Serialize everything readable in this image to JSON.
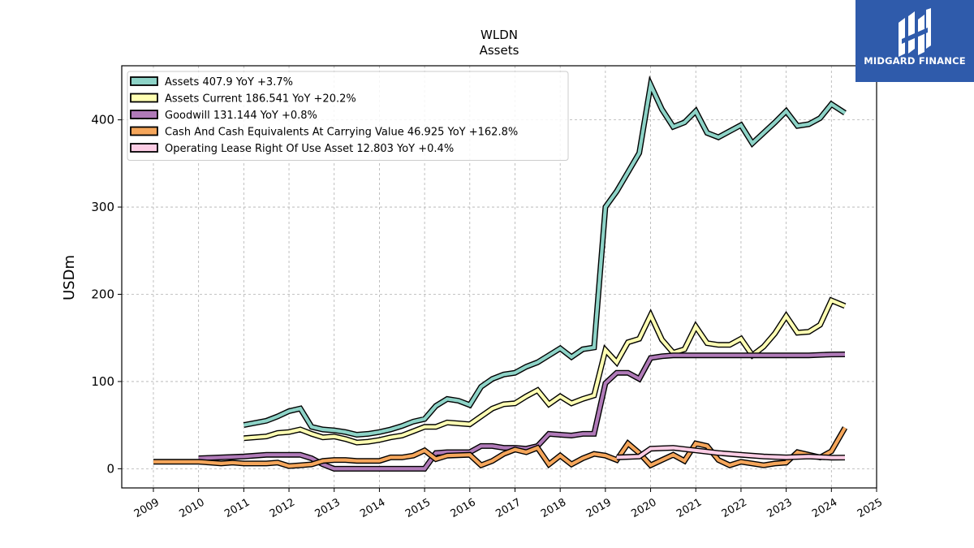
{
  "brand": {
    "name": "MIDGARD FINANCE",
    "color": "#2f5bab"
  },
  "chart_data": {
    "type": "line",
    "title": "WLDN",
    "subtitle": "Assets",
    "ylabel": "USDm",
    "xlabel": "",
    "xlim": [
      2008.3,
      2025.0
    ],
    "ylim": [
      -22,
      462
    ],
    "yticks": [
      0,
      100,
      200,
      300,
      400
    ],
    "xticks": [
      "2009",
      "2010",
      "2011",
      "2012",
      "2013",
      "2014",
      "2015",
      "2016",
      "2017",
      "2018",
      "2019",
      "2020",
      "2021",
      "2022",
      "2023",
      "2024",
      "2025"
    ],
    "grid": true,
    "legend_position": "top-left",
    "series": [
      {
        "name": "Assets",
        "legend": "Assets  407.9 YoY +3.7%",
        "color": "#8dd3c7",
        "points": [
          [
            2011.0,
            50
          ],
          [
            2011.5,
            55
          ],
          [
            2011.75,
            60
          ],
          [
            2012.0,
            66
          ],
          [
            2012.25,
            69
          ],
          [
            2012.5,
            48
          ],
          [
            2012.75,
            45
          ],
          [
            2013.0,
            44
          ],
          [
            2013.25,
            42
          ],
          [
            2013.5,
            39
          ],
          [
            2013.75,
            40
          ],
          [
            2014.0,
            42
          ],
          [
            2014.25,
            45
          ],
          [
            2014.5,
            49
          ],
          [
            2014.75,
            54
          ],
          [
            2015.0,
            57
          ],
          [
            2015.25,
            72
          ],
          [
            2015.5,
            80
          ],
          [
            2015.75,
            78
          ],
          [
            2016.0,
            73
          ],
          [
            2016.25,
            94
          ],
          [
            2016.5,
            103
          ],
          [
            2016.75,
            108
          ],
          [
            2017.0,
            110
          ],
          [
            2017.25,
            117
          ],
          [
            2017.5,
            122
          ],
          [
            2017.75,
            130
          ],
          [
            2018.0,
            138
          ],
          [
            2018.25,
            128
          ],
          [
            2018.5,
            137
          ],
          [
            2018.75,
            139
          ],
          [
            2019.0,
            300
          ],
          [
            2019.25,
            318
          ],
          [
            2019.5,
            340
          ],
          [
            2019.75,
            362
          ],
          [
            2020.0,
            440
          ],
          [
            2020.25,
            412
          ],
          [
            2020.5,
            392
          ],
          [
            2020.75,
            397
          ],
          [
            2021.0,
            410
          ],
          [
            2021.25,
            385
          ],
          [
            2021.5,
            380
          ],
          [
            2021.75,
            387
          ],
          [
            2022.0,
            394
          ],
          [
            2022.25,
            373
          ],
          [
            2022.5,
            385
          ],
          [
            2022.75,
            397
          ],
          [
            2023.0,
            410
          ],
          [
            2023.25,
            393
          ],
          [
            2023.5,
            395
          ],
          [
            2023.75,
            402
          ],
          [
            2024.0,
            418
          ],
          [
            2024.3,
            407.9
          ]
        ]
      },
      {
        "name": "Assets Current",
        "legend": "Assets Current  186.541 YoY +20.2%",
        "color": "#ffffb3",
        "points": [
          [
            2011.0,
            35
          ],
          [
            2011.5,
            37
          ],
          [
            2011.75,
            41
          ],
          [
            2012.0,
            42
          ],
          [
            2012.25,
            45
          ],
          [
            2012.5,
            40
          ],
          [
            2012.75,
            36
          ],
          [
            2013.0,
            37
          ],
          [
            2013.25,
            34
          ],
          [
            2013.5,
            30
          ],
          [
            2013.75,
            31
          ],
          [
            2014.0,
            33
          ],
          [
            2014.25,
            36
          ],
          [
            2014.5,
            38
          ],
          [
            2014.75,
            43
          ],
          [
            2015.0,
            48
          ],
          [
            2015.25,
            48
          ],
          [
            2015.5,
            53
          ],
          [
            2015.75,
            52
          ],
          [
            2016.0,
            51
          ],
          [
            2016.25,
            60
          ],
          [
            2016.5,
            69
          ],
          [
            2016.75,
            74
          ],
          [
            2017.0,
            75
          ],
          [
            2017.25,
            83
          ],
          [
            2017.5,
            90
          ],
          [
            2017.75,
            74
          ],
          [
            2018.0,
            83
          ],
          [
            2018.25,
            75
          ],
          [
            2018.5,
            80
          ],
          [
            2018.75,
            84
          ],
          [
            2019.0,
            136
          ],
          [
            2019.25,
            122
          ],
          [
            2019.5,
            145
          ],
          [
            2019.75,
            149
          ],
          [
            2020.0,
            176
          ],
          [
            2020.25,
            148
          ],
          [
            2020.5,
            133
          ],
          [
            2020.75,
            137
          ],
          [
            2021.0,
            163
          ],
          [
            2021.25,
            144
          ],
          [
            2021.5,
            142
          ],
          [
            2021.75,
            142
          ],
          [
            2022.0,
            149
          ],
          [
            2022.25,
            130
          ],
          [
            2022.5,
            140
          ],
          [
            2022.75,
            155
          ],
          [
            2023.0,
            175
          ],
          [
            2023.25,
            156
          ],
          [
            2023.5,
            157
          ],
          [
            2023.75,
            165
          ],
          [
            2024.0,
            193
          ],
          [
            2024.3,
            186.541
          ]
        ]
      },
      {
        "name": "Goodwill",
        "legend": "Goodwill  131.144 YoY +0.8%",
        "color": "#bebada",
        "stroke": "#b07ab8",
        "points": [
          [
            2010.0,
            12
          ],
          [
            2010.5,
            13
          ],
          [
            2011.0,
            14
          ],
          [
            2011.5,
            16
          ],
          [
            2012.0,
            16
          ],
          [
            2012.25,
            16
          ],
          [
            2012.5,
            12
          ],
          [
            2012.75,
            5
          ],
          [
            2013.0,
            0
          ],
          [
            2013.5,
            0
          ],
          [
            2014.0,
            0
          ],
          [
            2014.5,
            0
          ],
          [
            2015.0,
            0
          ],
          [
            2015.25,
            18
          ],
          [
            2015.5,
            19
          ],
          [
            2016.0,
            19
          ],
          [
            2016.25,
            26
          ],
          [
            2016.5,
            26
          ],
          [
            2016.75,
            24
          ],
          [
            2017.0,
            24
          ],
          [
            2017.25,
            23
          ],
          [
            2017.5,
            26
          ],
          [
            2017.75,
            40
          ],
          [
            2018.0,
            39
          ],
          [
            2018.25,
            38
          ],
          [
            2018.5,
            40
          ],
          [
            2018.75,
            40
          ],
          [
            2019.0,
            98
          ],
          [
            2019.25,
            110
          ],
          [
            2019.5,
            110
          ],
          [
            2019.75,
            103
          ],
          [
            2020.0,
            127
          ],
          [
            2020.25,
            129
          ],
          [
            2020.5,
            130
          ],
          [
            2021.0,
            130
          ],
          [
            2022.0,
            130
          ],
          [
            2023.0,
            130
          ],
          [
            2023.5,
            130
          ],
          [
            2024.0,
            131
          ],
          [
            2024.3,
            131.144
          ]
        ]
      },
      {
        "name": "Cash And Cash Equivalents At Carrying Value",
        "legend": "Cash And Cash Equivalents At Carrying Value  46.925 YoY +162.8%",
        "color": "#fdb462",
        "stroke": "#f5a65b",
        "points": [
          [
            2009.0,
            8
          ],
          [
            2010.0,
            8
          ],
          [
            2010.25,
            7
          ],
          [
            2010.5,
            6
          ],
          [
            2010.75,
            7
          ],
          [
            2011.0,
            6
          ],
          [
            2011.5,
            6
          ],
          [
            2011.75,
            7
          ],
          [
            2012.0,
            3
          ],
          [
            2012.25,
            4
          ],
          [
            2012.5,
            5
          ],
          [
            2012.75,
            9
          ],
          [
            2013.0,
            10
          ],
          [
            2013.25,
            10
          ],
          [
            2013.5,
            9
          ],
          [
            2014.0,
            9
          ],
          [
            2014.25,
            13
          ],
          [
            2014.5,
            13
          ],
          [
            2014.75,
            15
          ],
          [
            2015.0,
            21
          ],
          [
            2015.25,
            11
          ],
          [
            2015.5,
            15
          ],
          [
            2016.0,
            16
          ],
          [
            2016.25,
            4
          ],
          [
            2016.5,
            9
          ],
          [
            2016.75,
            17
          ],
          [
            2017.0,
            22
          ],
          [
            2017.25,
            19
          ],
          [
            2017.5,
            24
          ],
          [
            2017.75,
            5
          ],
          [
            2018.0,
            15
          ],
          [
            2018.25,
            5
          ],
          [
            2018.5,
            12
          ],
          [
            2018.75,
            17
          ],
          [
            2019.0,
            15
          ],
          [
            2019.25,
            10
          ],
          [
            2019.5,
            29
          ],
          [
            2019.75,
            18
          ],
          [
            2020.0,
            4
          ],
          [
            2020.25,
            10
          ],
          [
            2020.5,
            16
          ],
          [
            2020.75,
            9
          ],
          [
            2021.0,
            29
          ],
          [
            2021.25,
            26
          ],
          [
            2021.5,
            10
          ],
          [
            2021.75,
            4
          ],
          [
            2022.0,
            8
          ],
          [
            2022.25,
            6
          ],
          [
            2022.5,
            4
          ],
          [
            2022.75,
            6
          ],
          [
            2023.0,
            7
          ],
          [
            2023.25,
            19
          ],
          [
            2023.5,
            16
          ],
          [
            2023.75,
            13
          ],
          [
            2024.0,
            20
          ],
          [
            2024.3,
            46.925
          ]
        ]
      },
      {
        "name": "Operating Lease Right Of Use Asset",
        "legend": "Operating Lease Right Of Use Asset  12.803 YoY +0.4%",
        "color": "#fccde5",
        "points": [
          [
            2019.25,
            13
          ],
          [
            2019.75,
            14
          ],
          [
            2020.0,
            23
          ],
          [
            2020.5,
            24
          ],
          [
            2021.0,
            21
          ],
          [
            2021.5,
            18
          ],
          [
            2022.0,
            16
          ],
          [
            2022.5,
            14
          ],
          [
            2023.0,
            13
          ],
          [
            2023.5,
            14
          ],
          [
            2024.0,
            12.7
          ],
          [
            2024.3,
            12.803
          ]
        ]
      }
    ]
  }
}
